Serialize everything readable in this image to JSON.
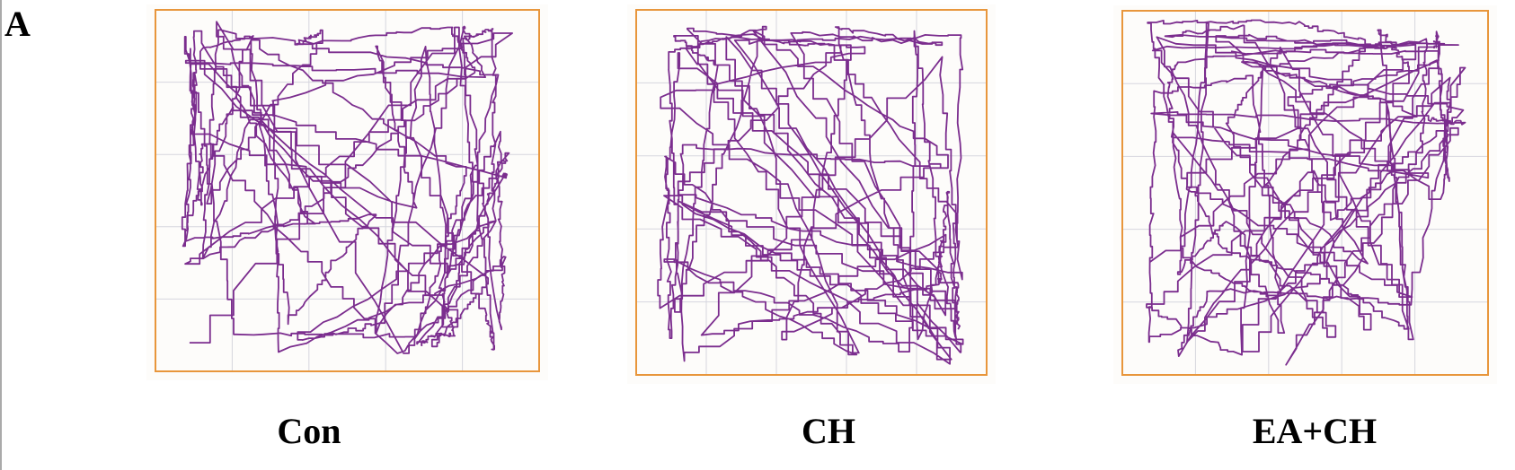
{
  "panel_label": "A",
  "panels": [
    {
      "label": "Con"
    },
    {
      "label": "CH"
    },
    {
      "label": "EA+CH"
    }
  ]
}
